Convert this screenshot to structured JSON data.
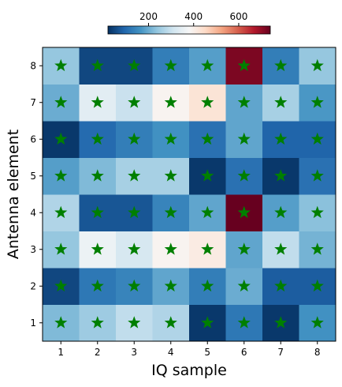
{
  "chart_data": {
    "type": "heatmap",
    "title": "",
    "xlabel": "IQ sample",
    "ylabel": "Antenna element",
    "x_categories": [
      "1",
      "2",
      "3",
      "4",
      "5",
      "6",
      "7",
      "8"
    ],
    "y_categories": [
      "1",
      "2",
      "3",
      "4",
      "5",
      "6",
      "7",
      "8"
    ],
    "colormap": "RdBu_r",
    "color_range": [
      20,
      740
    ],
    "colorbar": {
      "position": "top",
      "ticks": [
        200,
        400,
        600
      ],
      "tick_labels": [
        "200",
        "400",
        "600"
      ]
    },
    "marker": {
      "symbol": "star",
      "color": "#007f00"
    },
    "values": [
      [
        220,
        250,
        290,
        270,
        30,
        120,
        30,
        160
      ],
      [
        50,
        120,
        140,
        190,
        130,
        200,
        80,
        80
      ],
      [
        240,
        360,
        320,
        390,
        410,
        190,
        290,
        210
      ],
      [
        270,
        70,
        70,
        140,
        190,
        740,
        180,
        230
      ],
      [
        180,
        220,
        260,
        260,
        30,
        110,
        30,
        110
      ],
      [
        30,
        100,
        130,
        160,
        110,
        190,
        90,
        90
      ],
      [
        200,
        340,
        300,
        390,
        430,
        190,
        260,
        170
      ],
      [
        240,
        50,
        50,
        130,
        180,
        720,
        130,
        240
      ]
    ]
  }
}
